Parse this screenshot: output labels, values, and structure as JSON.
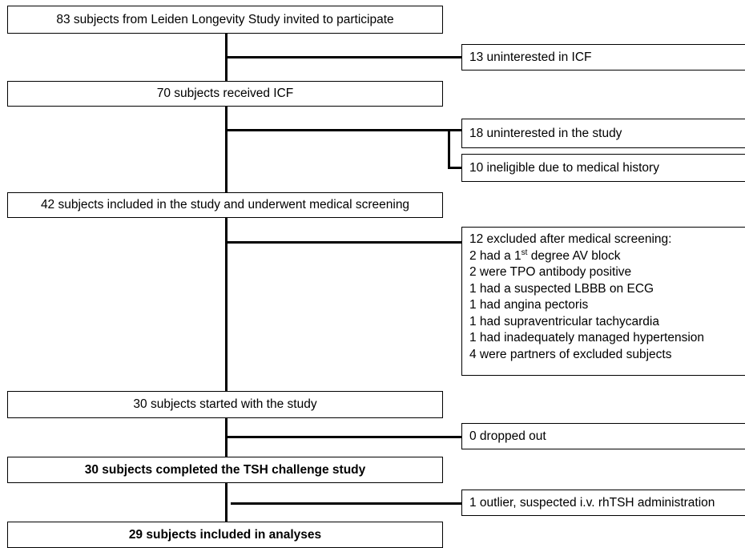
{
  "flow": {
    "steps": [
      "83 subjects from Leiden Longevity Study invited to participate",
      "70 subjects received ICF",
      "42 subjects included in the study and underwent medical screening",
      "30 subjects started with the study",
      "30 subjects completed the TSH challenge study",
      "29 subjects included in analyses"
    ],
    "exits": {
      "icf": "13 uninterested in ICF",
      "study": "18 uninterested in the study",
      "ineligible": "10 ineligible due to medical history",
      "dropped": "0 dropped out",
      "outlier": "1 outlier, suspected i.v. rhTSH administration"
    },
    "screening": {
      "header": "12 excluded after medical screening:",
      "av_block_prefix": "2 had a 1",
      "av_block_sup": "st",
      "av_block_suffix": " degree AV block",
      "items": [
        "2 were TPO antibody positive",
        "1 had a suspected LBBB on ECG",
        "1 had angina pectoris",
        "1 had supraventricular tachycardia",
        "1 had inadequately managed hypertension",
        "4 were partners of excluded subjects"
      ]
    }
  }
}
